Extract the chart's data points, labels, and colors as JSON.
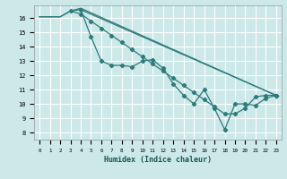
{
  "title": "",
  "xlabel": "Humidex (Indice chaleur)",
  "ylabel": "",
  "bg_color": "#cce8e8",
  "line_color": "#2e7b7b",
  "grid_color": "#ffffff",
  "xlim": [
    -0.5,
    23.5
  ],
  "ylim": [
    7.5,
    16.9
  ],
  "yticks": [
    8,
    9,
    10,
    11,
    12,
    13,
    14,
    15,
    16
  ],
  "xticks": [
    0,
    1,
    2,
    3,
    4,
    5,
    6,
    7,
    8,
    9,
    10,
    11,
    12,
    13,
    14,
    15,
    16,
    17,
    18,
    19,
    20,
    21,
    22,
    23
  ],
  "line1_x": [
    0,
    1,
    2,
    3,
    4,
    23
  ],
  "line1_y": [
    16.1,
    16.1,
    16.1,
    16.5,
    16.6,
    10.6
  ],
  "line2_x": [
    0,
    1,
    2,
    3,
    4,
    23
  ],
  "line2_y": [
    16.1,
    16.1,
    16.1,
    16.5,
    16.7,
    10.6
  ],
  "line3_x": [
    4,
    5,
    6,
    7,
    8,
    9,
    10,
    11,
    12,
    13,
    14,
    15,
    16,
    17,
    18,
    19,
    20,
    21,
    22,
    23
  ],
  "line3_y": [
    16.6,
    14.7,
    13.0,
    12.7,
    12.7,
    12.6,
    13.0,
    13.1,
    12.5,
    11.4,
    10.6,
    10.0,
    11.0,
    9.7,
    8.2,
    10.0,
    10.0,
    9.9,
    10.4,
    10.6
  ],
  "line4_x": [
    3,
    4,
    5,
    6,
    7,
    8,
    9,
    10,
    11,
    12,
    13,
    14,
    15,
    16,
    17,
    18,
    19,
    20,
    21,
    22,
    23
  ],
  "line4_y": [
    16.5,
    16.3,
    15.8,
    15.3,
    14.8,
    14.3,
    13.8,
    13.3,
    12.8,
    12.3,
    11.8,
    11.3,
    10.8,
    10.3,
    9.8,
    9.3,
    9.3,
    9.7,
    10.5,
    10.6,
    10.6
  ]
}
